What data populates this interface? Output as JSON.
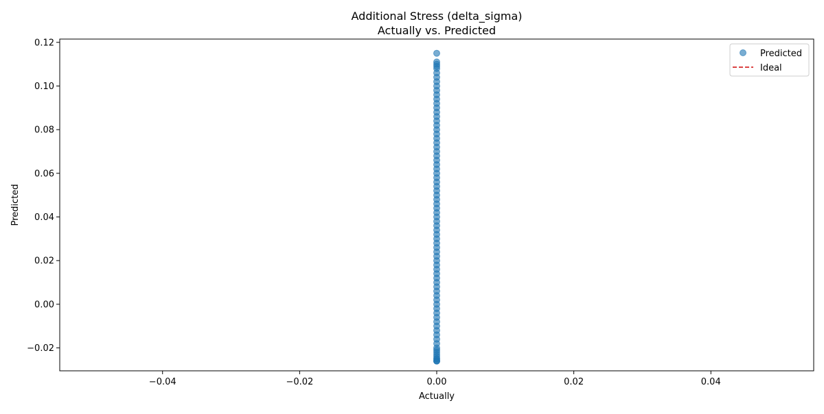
{
  "chart_data": {
    "type": "scatter",
    "title_line1": "Additional Stress (delta_sigma)",
    "title_line2": "Actually vs. Predicted",
    "xlabel": "Actually",
    "ylabel": "Predicted",
    "xlim": [
      -0.055,
      0.055
    ],
    "ylim": [
      -0.0305,
      0.1215
    ],
    "x_ticks": [
      -0.04,
      -0.02,
      0.0,
      0.02,
      0.04
    ],
    "x_tick_labels": [
      "−0.04",
      "−0.02",
      "0.00",
      "0.02",
      "0.04"
    ],
    "y_ticks": [
      -0.02,
      0.0,
      0.02,
      0.04,
      0.06,
      0.08,
      0.1,
      0.12
    ],
    "y_tick_labels": [
      "−0.02",
      "0.00",
      "0.02",
      "0.04",
      "0.06",
      "0.08",
      "0.10",
      "0.12"
    ],
    "grid": false,
    "legend_position": "top-right",
    "series": [
      {
        "name": "Predicted",
        "kind": "points",
        "color": "#1f77b4",
        "alpha": 0.6,
        "x": [
          0,
          0,
          0,
          0,
          0,
          0,
          0,
          0,
          0,
          0,
          0,
          0,
          0,
          0,
          0,
          0,
          0,
          0,
          0,
          0,
          0,
          0,
          0,
          0,
          0,
          0,
          0,
          0,
          0,
          0,
          0,
          0,
          0,
          0,
          0,
          0,
          0,
          0,
          0,
          0,
          0,
          0,
          0,
          0,
          0,
          0,
          0,
          0,
          0,
          0,
          0,
          0,
          0,
          0,
          0,
          0,
          0,
          0,
          0,
          0,
          0,
          0,
          0,
          0,
          0,
          0,
          0,
          0,
          0,
          0,
          0,
          0,
          0,
          0,
          0,
          0,
          0,
          0
        ],
        "y": [
          0.115,
          0.111,
          0.11,
          0.109,
          0.108,
          0.106,
          0.104,
          0.102,
          0.1,
          0.098,
          0.096,
          0.094,
          0.092,
          0.09,
          0.088,
          0.086,
          0.084,
          0.082,
          0.08,
          0.078,
          0.076,
          0.074,
          0.072,
          0.07,
          0.068,
          0.066,
          0.064,
          0.062,
          0.06,
          0.058,
          0.056,
          0.054,
          0.052,
          0.05,
          0.048,
          0.046,
          0.044,
          0.042,
          0.04,
          0.038,
          0.036,
          0.034,
          0.032,
          0.03,
          0.028,
          0.026,
          0.024,
          0.022,
          0.02,
          0.018,
          0.016,
          0.014,
          0.012,
          0.01,
          0.008,
          0.006,
          0.004,
          0.002,
          0.0,
          -0.002,
          -0.004,
          -0.006,
          -0.008,
          -0.01,
          -0.012,
          -0.014,
          -0.016,
          -0.018,
          -0.02,
          -0.021,
          -0.022,
          -0.023,
          -0.024,
          -0.025,
          -0.025,
          -0.026,
          -0.026,
          -0.026
        ]
      },
      {
        "name": "Ideal",
        "kind": "dashed-line",
        "color": "#d62728",
        "x": [
          0,
          0
        ],
        "y": [
          0,
          0
        ]
      }
    ]
  }
}
